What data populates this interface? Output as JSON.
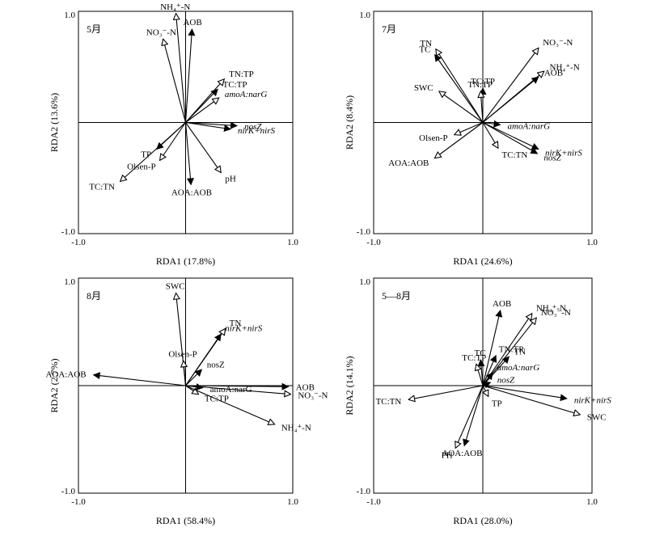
{
  "chart_data": [
    {
      "type": "biplot",
      "panel_label": "5月",
      "xlabel": "RDA1 (17.8%)",
      "ylabel": "RDA2 (13.6%)",
      "xlim": [
        -1.0,
        1.0
      ],
      "ylim": [
        -1.0,
        1.0
      ],
      "xticks": [
        "-1.0",
        "1.0"
      ],
      "yticks": [
        "1.0",
        "-1.0"
      ],
      "vectors": [
        {
          "label": "NH₄⁺-N",
          "x": -0.09,
          "y": 0.98,
          "head": "open"
        },
        {
          "label": "NO₃⁻-N",
          "x": -0.21,
          "y": 0.75,
          "head": "open"
        },
        {
          "label": "AOB",
          "x": 0.06,
          "y": 0.84,
          "head": "filled"
        },
        {
          "label": "TN:TP",
          "x": 0.36,
          "y": 0.39,
          "head": "open"
        },
        {
          "label": "TC:TP",
          "x": 0.3,
          "y": 0.3,
          "head": "filled"
        },
        {
          "label": "amoA:narG",
          "x": 0.31,
          "y": 0.22,
          "head": "open",
          "italic": true
        },
        {
          "label": "nosZ",
          "x": 0.48,
          "y": -0.03,
          "head": "filled",
          "italic": true
        },
        {
          "label": "nirK+nirS",
          "x": 0.42,
          "y": -0.06,
          "head": "filled",
          "italic": true
        },
        {
          "label": "TP",
          "x": -0.27,
          "y": -0.24,
          "head": "filled"
        },
        {
          "label": "Olsen-P",
          "x": -0.24,
          "y": -0.34,
          "head": "open"
        },
        {
          "label": "TC:TN",
          "x": -0.61,
          "y": -0.53,
          "head": "open"
        },
        {
          "label": "AOA:AOB",
          "x": 0.05,
          "y": -0.56,
          "head": "filled"
        },
        {
          "label": "pH",
          "x": 0.33,
          "y": -0.45,
          "head": "open"
        }
      ]
    },
    {
      "type": "biplot",
      "panel_label": "7月",
      "xlabel": "RDA1 (24.6%)",
      "ylabel": "RDA2 (8.4%)",
      "xlim": [
        -1.0,
        1.0
      ],
      "ylim": [
        -1.0,
        1.0
      ],
      "xticks": [
        "-1.0",
        "1.0"
      ],
      "yticks": [
        "1.0",
        "-1.0"
      ],
      "vectors": [
        {
          "label": "TN",
          "x": -0.43,
          "y": 0.66,
          "head": "open"
        },
        {
          "label": "TC",
          "x": -0.44,
          "y": 0.61,
          "head": "filled"
        },
        {
          "label": "TC:TP",
          "x": 0.0,
          "y": 0.31,
          "head": "filled"
        },
        {
          "label": "TN:TP",
          "x": -0.02,
          "y": 0.28,
          "head": "open"
        },
        {
          "label": "NO₃⁻-N",
          "x": 0.51,
          "y": 0.67,
          "head": "open"
        },
        {
          "label": "NH₄⁺-N",
          "x": 0.56,
          "y": 0.46,
          "head": "open"
        },
        {
          "label": "AOB",
          "x": 0.51,
          "y": 0.41,
          "head": "filled"
        },
        {
          "label": "SWC",
          "x": -0.4,
          "y": 0.28,
          "head": "open"
        },
        {
          "label": "amoA:narG",
          "x": 0.16,
          "y": -0.02,
          "head": "filled",
          "italic": true
        },
        {
          "label": "Olsen-P",
          "x": -0.26,
          "y": -0.11,
          "head": "open"
        },
        {
          "label": "nirK+nirS",
          "x": 0.51,
          "y": -0.24,
          "head": "filled",
          "italic": true
        },
        {
          "label": "nosZ",
          "x": 0.5,
          "y": -0.28,
          "head": "filled",
          "italic": true
        },
        {
          "label": "TC:TN",
          "x": 0.14,
          "y": -0.23,
          "head": "open"
        },
        {
          "label": "AOA:AOB",
          "x": -0.44,
          "y": -0.32,
          "head": "open"
        }
      ]
    },
    {
      "type": "biplot",
      "panel_label": "8月",
      "xlabel": "RDA1 (58.4%)",
      "ylabel": "RDA2 (2.7%)",
      "xlim": [
        -1.0,
        1.0
      ],
      "ylim": [
        -1.0,
        1.0
      ],
      "xticks": [
        "-1.0",
        "1.0"
      ],
      "yticks": [
        "1.0",
        "-1.0"
      ],
      "vectors": [
        {
          "label": "SWC",
          "x": -0.09,
          "y": 0.86,
          "head": "open"
        },
        {
          "label": "TN",
          "x": 0.37,
          "y": 0.53,
          "head": "open"
        },
        {
          "label": "nirK+nirS",
          "x": 0.33,
          "y": 0.48,
          "head": "filled",
          "italic": true
        },
        {
          "label": "Olsen-P",
          "x": -0.02,
          "y": 0.23,
          "head": "open"
        },
        {
          "label": "nosZ",
          "x": 0.15,
          "y": 0.15,
          "head": "filled"
        },
        {
          "label": "AOA:AOB",
          "x": -0.86,
          "y": 0.1,
          "head": "filled"
        },
        {
          "label": "AOB",
          "x": 0.96,
          "y": -0.01,
          "head": "filled"
        },
        {
          "label": "amoA:narG",
          "x": 0.16,
          "y": -0.02,
          "head": "filled"
        },
        {
          "label": "TC:TP",
          "x": 0.12,
          "y": -0.08,
          "head": "open"
        },
        {
          "label": "NO₃⁻-N",
          "x": 0.98,
          "y": -0.08,
          "head": "open"
        },
        {
          "label": "NH₄⁺-N",
          "x": 0.83,
          "y": -0.36,
          "head": "open"
        }
      ]
    },
    {
      "type": "biplot",
      "panel_label": "5—8月",
      "xlabel": "RDA1 (28.0%)",
      "ylabel": "RDA2 (14.1%)",
      "xlim": [
        -1.0,
        1.0
      ],
      "ylim": [
        -1.0,
        1.0
      ],
      "xticks": [
        "-1.0",
        "1.0"
      ],
      "yticks": [
        "1.0",
        "-1.0"
      ],
      "vectors": [
        {
          "label": "AOB",
          "x": 0.16,
          "y": 0.7,
          "head": "filled"
        },
        {
          "label": "NH₄⁺-N",
          "x": 0.45,
          "y": 0.67,
          "head": "open"
        },
        {
          "label": "NO₃⁻-N",
          "x": 0.49,
          "y": 0.63,
          "head": "open"
        },
        {
          "label": "TN:TP",
          "x": 0.12,
          "y": 0.28,
          "head": "filled"
        },
        {
          "label": "TN",
          "x": 0.24,
          "y": 0.27,
          "head": "filled"
        },
        {
          "label": "TC",
          "x": -0.02,
          "y": 0.24,
          "head": "filled"
        },
        {
          "label": "TC:TP",
          "x": -0.06,
          "y": 0.2,
          "head": "open"
        },
        {
          "label": "amoA:narG",
          "x": 0.09,
          "y": 0.12,
          "head": "filled",
          "italic": true
        },
        {
          "label": "nosZ",
          "x": 0.07,
          "y": 0.03,
          "head": "filled",
          "italic": true
        },
        {
          "label": "TC:TN",
          "x": -0.68,
          "y": -0.13,
          "head": "open"
        },
        {
          "label": "nirK+nirS",
          "x": 0.77,
          "y": -0.12,
          "head": "filled",
          "italic": true
        },
        {
          "label": "SWC",
          "x": 0.89,
          "y": -0.27,
          "head": "open"
        },
        {
          "label": "TP",
          "x": 0.05,
          "y": -0.1,
          "head": "open"
        },
        {
          "label": "PH",
          "x": -0.25,
          "y": -0.58,
          "head": "open"
        },
        {
          "label": "AOA:AOB",
          "x": -0.17,
          "y": -0.56,
          "head": "filled"
        }
      ]
    }
  ]
}
